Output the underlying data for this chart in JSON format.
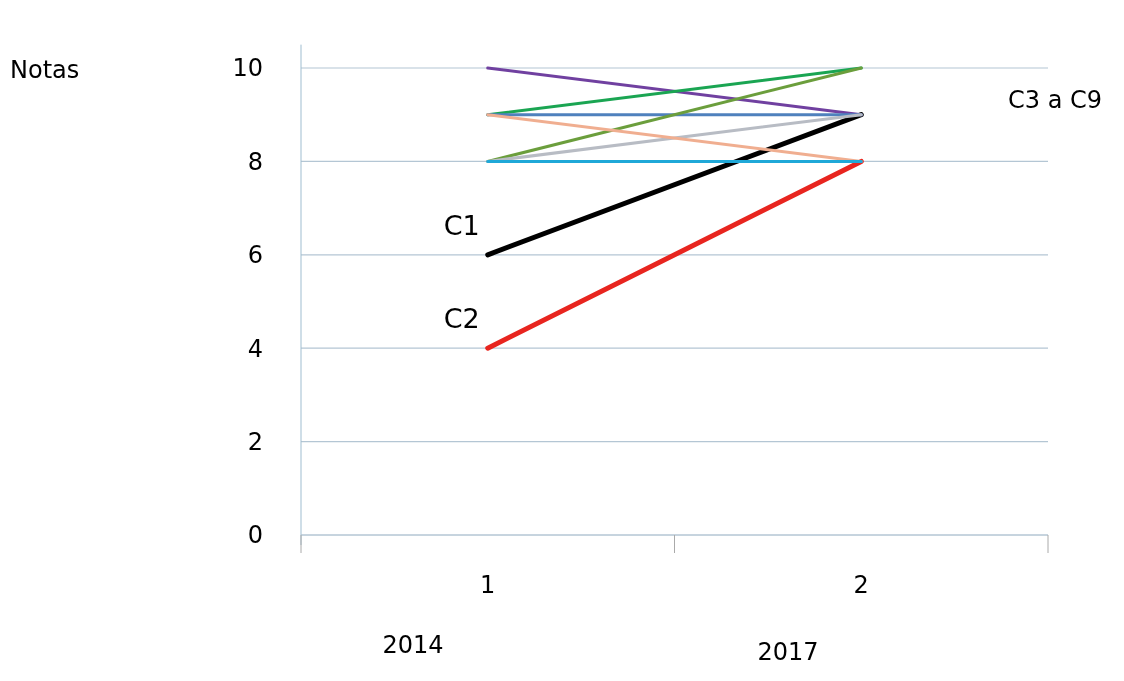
{
  "chart_data": {
    "type": "line",
    "categories": [
      "1",
      "2"
    ],
    "ylim": [
      0,
      10.5
    ],
    "yticks": [
      0,
      2,
      4,
      6,
      8,
      10
    ],
    "grid": "y",
    "marker": "none",
    "series": [
      {
        "name": "C1",
        "color": "#000000",
        "values": [
          6,
          9
        ]
      },
      {
        "name": "C2",
        "color": "#e8251f",
        "values": [
          4,
          8
        ]
      },
      {
        "color": "#7040a0",
        "values": [
          10,
          9
        ]
      },
      {
        "color": "#1aa552",
        "values": [
          9,
          10
        ]
      },
      {
        "color": "#4f81bd",
        "values": [
          9,
          9
        ]
      },
      {
        "color": "#6b9e3c",
        "values": [
          8,
          10
        ]
      },
      {
        "color": "#b8bcc4",
        "values": [
          8,
          9
        ]
      },
      {
        "color": "#f0ae90",
        "values": [
          9,
          8
        ]
      },
      {
        "color": "#1fa8d8",
        "values": [
          8,
          8
        ]
      }
    ],
    "annotations": [
      "Notas",
      "C3 a C9",
      "2014",
      "2017"
    ]
  }
}
